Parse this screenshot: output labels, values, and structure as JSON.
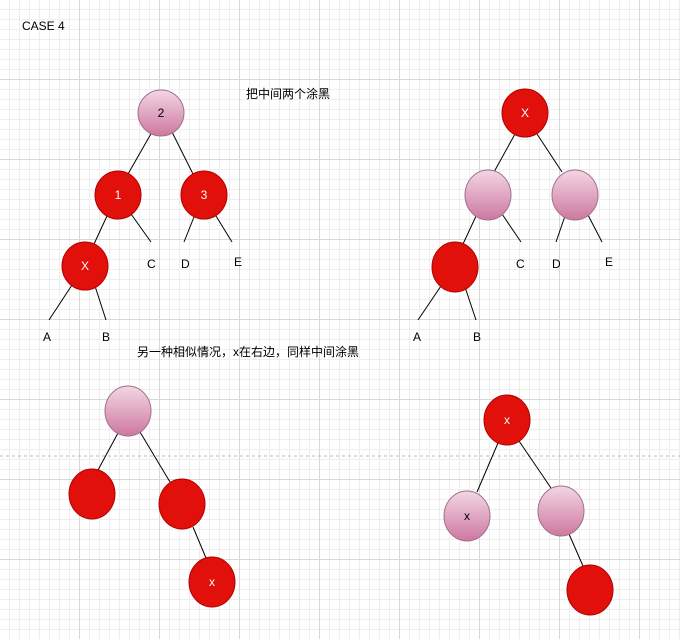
{
  "title": "CASE 4",
  "note_top": "把中间两个涂黑",
  "note_bottom": "另一种相似情况，x在右边，同样中间涂黑",
  "colors": {
    "red": "#e2100b",
    "red_stroke": "#b20000",
    "pink_light": "#f0d0e0",
    "pink_dark": "#cf7aa2",
    "pink_stroke": "#a0708a"
  },
  "trees": {
    "top_left": {
      "root": "2",
      "left": "1",
      "right": "3",
      "left_left": "X",
      "c": "C",
      "d": "D",
      "e": "E",
      "a": "A",
      "b": "B"
    },
    "top_right": {
      "root": "X",
      "c": "C",
      "d": "D",
      "e": "E",
      "a": "A",
      "b": "B"
    },
    "bottom_left": {
      "node_x": "x"
    },
    "bottom_right": {
      "root": "x",
      "left": "x"
    }
  }
}
